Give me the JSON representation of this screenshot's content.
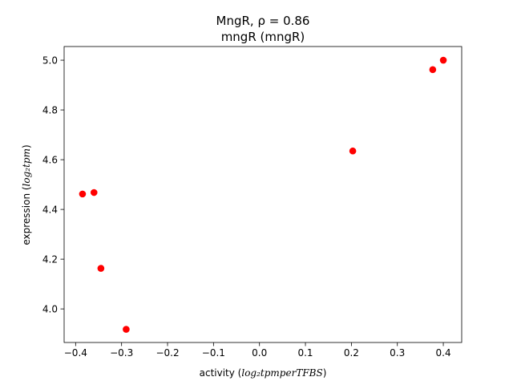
{
  "chart_data": {
    "type": "scatter",
    "title_line1_prefix": "MngR, ",
    "title_line1_rho": "ρ = 0.86",
    "title_line2": "mngR (mngR)",
    "xlabel_prefix": "activity (",
    "xlabel_math": "log₂tpmperTFBS",
    "xlabel_suffix": ")",
    "ylabel_prefix": "expression (",
    "ylabel_math": "log₂tpm",
    "ylabel_suffix": ")",
    "xlim": [
      -0.425,
      0.44
    ],
    "ylim": [
      3.865,
      5.055
    ],
    "xticks": [
      -0.4,
      -0.3,
      -0.2,
      -0.1,
      0.0,
      0.1,
      0.2,
      0.3,
      0.4
    ],
    "xtick_labels": [
      "−0.4",
      "−0.3",
      "−0.2",
      "−0.1",
      "0.0",
      "0.1",
      "0.2",
      "0.3",
      "0.4"
    ],
    "yticks": [
      4.0,
      4.2,
      4.4,
      4.6,
      4.8,
      5.0
    ],
    "ytick_labels": [
      "4.0",
      "4.2",
      "4.4",
      "4.6",
      "4.8",
      "5.0"
    ],
    "marker_color": "#ff0000",
    "points": [
      {
        "x": -0.385,
        "y": 4.462
      },
      {
        "x": -0.36,
        "y": 4.468
      },
      {
        "x": -0.345,
        "y": 4.163
      },
      {
        "x": -0.29,
        "y": 3.918
      },
      {
        "x": 0.203,
        "y": 4.635
      },
      {
        "x": 0.377,
        "y": 4.962
      },
      {
        "x": 0.4,
        "y": 5.0
      }
    ]
  }
}
